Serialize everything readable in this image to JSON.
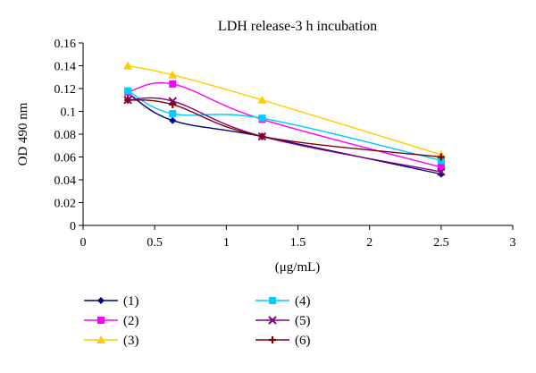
{
  "chart_data": {
    "type": "line",
    "title": "LDH release-3 h incubation",
    "xlabel": "(μg/mL)",
    "ylabel": "OD 490 nm",
    "xlim": [
      0,
      3
    ],
    "ylim": [
      0,
      0.16
    ],
    "x_ticks": [
      "0",
      "0.5",
      "1",
      "1.5",
      "2",
      "2.5",
      "3"
    ],
    "y_ticks": [
      "0",
      "0.02",
      "0.04",
      "0.06",
      "0.08",
      "0.1",
      "0.12",
      "0.14",
      "0.16"
    ],
    "grid": false,
    "legend_position": "bottom",
    "x": [
      0.3125,
      0.625,
      1.25,
      2.5
    ],
    "series": [
      {
        "name": "(1)",
        "color": "#000080",
        "marker": "diamond",
        "values": [
          0.116,
          0.092,
          0.078,
          0.045
        ]
      },
      {
        "name": "(2)",
        "color": "#ff00ff",
        "marker": "square",
        "values": [
          0.117,
          0.124,
          0.093,
          0.051
        ]
      },
      {
        "name": "(3)",
        "color": "#ffcc00",
        "marker": "triangle",
        "values": [
          0.14,
          0.132,
          0.11,
          0.062
        ]
      },
      {
        "name": "(4)",
        "color": "#00ccff",
        "marker": "square",
        "values": [
          0.118,
          0.098,
          0.094,
          0.057
        ]
      },
      {
        "name": "(5)",
        "color": "#800080",
        "marker": "x",
        "values": [
          0.11,
          0.109,
          0.078,
          0.047
        ]
      },
      {
        "name": "(6)",
        "color": "#800000",
        "marker": "bar",
        "values": [
          0.11,
          0.106,
          0.078,
          0.06
        ]
      }
    ]
  }
}
